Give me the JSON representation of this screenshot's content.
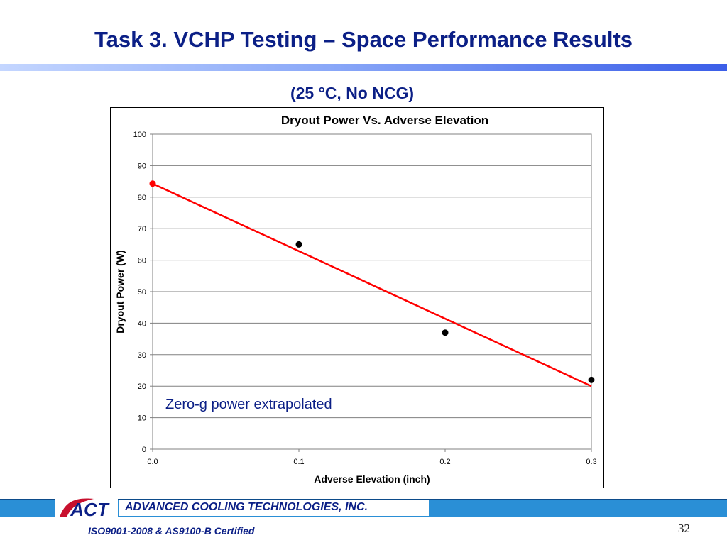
{
  "slide": {
    "title": "Task 3. VCHP Testing – Space Performance Results",
    "subtitle": "(25 °C, No NCG)"
  },
  "chart_data": {
    "type": "scatter",
    "title": "Dryout Power Vs. Adverse Elevation",
    "xlabel": "Adverse Elevation (inch)",
    "ylabel": "Dryout Power (W)",
    "xlim": [
      0,
      0.3
    ],
    "ylim": [
      0,
      100
    ],
    "xticks": [
      0.0,
      0.1,
      0.2,
      0.3
    ],
    "xtick_labels": [
      "0.0",
      "0.1",
      "0.2",
      "0.3"
    ],
    "yticks": [
      0,
      10,
      20,
      30,
      40,
      50,
      60,
      70,
      80,
      90,
      100
    ],
    "ytick_labels": [
      "0",
      "10",
      "20",
      "30",
      "40",
      "50",
      "60",
      "70",
      "80",
      "90",
      "100"
    ],
    "grid": "horizontal",
    "series": [
      {
        "points": [
          {
            "x": 0.1,
            "y": 65
          },
          {
            "x": 0.2,
            "y": 37
          },
          {
            "x": 0.3,
            "y": 22
          }
        ],
        "color": "#000000"
      },
      {
        "points": [
          {
            "x": 0.0,
            "y": 84.3
          }
        ],
        "color": "#ff0000"
      }
    ],
    "trendline": {
      "x": [
        0.0,
        0.3
      ],
      "y": [
        84.3,
        20
      ],
      "color": "#ff0000"
    },
    "annotation": {
      "text": "Zero-g power extrapolated"
    }
  },
  "footer": {
    "logo_text": "ACT",
    "company": "ADVANCED COOLING TECHNOLOGIES, INC.",
    "certification": "ISO9001-2008 & AS9100-B Certified",
    "page_number": "32",
    "band_color": "#2a8fd6",
    "logo_color": "#c8102e"
  }
}
